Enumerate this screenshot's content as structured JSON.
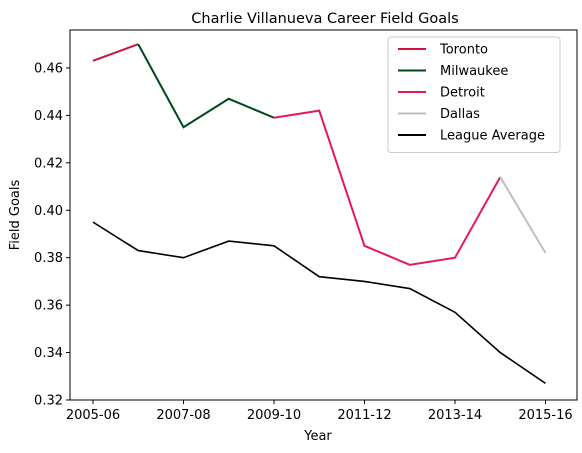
{
  "chart_data": {
    "type": "line",
    "title": "Charlie Villanueva Career Field Goals",
    "xlabel": "Year",
    "ylabel": "Field Goals",
    "x": [
      "2005-06",
      "2006-07",
      "2007-08",
      "2008-09",
      "2009-10",
      "2010-11",
      "2011-12",
      "2012-13",
      "2013-14",
      "2014-15",
      "2015-16"
    ],
    "x_tick_labels": [
      "2005-06",
      "2007-08",
      "2009-10",
      "2011-12",
      "2013-14",
      "2015-16"
    ],
    "ylim": [
      0.32,
      0.476
    ],
    "y_ticks": [
      0.32,
      0.34,
      0.36,
      0.38,
      0.4,
      0.42,
      0.44,
      0.46
    ],
    "y_tick_labels": [
      "0.32",
      "0.34",
      "0.36",
      "0.38",
      "0.40",
      "0.42",
      "0.44",
      "0.46"
    ],
    "grid": false,
    "legend_position": "top-right",
    "series": [
      {
        "name": "Toronto",
        "color": "#ce1141",
        "x": [
          "2005-06",
          "2006-07"
        ],
        "values": [
          0.463,
          0.47
        ]
      },
      {
        "name": "Milwaukee",
        "color": "#00471b",
        "x": [
          "2006-07",
          "2007-08",
          "2008-09",
          "2009-10"
        ],
        "values": [
          0.47,
          0.435,
          0.447,
          0.439
        ]
      },
      {
        "name": "Detroit",
        "color": "#e31b54",
        "x": [
          "2009-10",
          "2010-11",
          "2011-12",
          "2012-13",
          "2013-14",
          "2014-15"
        ],
        "values": [
          0.439,
          0.442,
          0.385,
          0.377,
          0.38,
          0.414
        ]
      },
      {
        "name": "Dallas",
        "color": "#bfbfbf",
        "x": [
          "2014-15",
          "2015-16"
        ],
        "values": [
          0.414,
          0.382
        ]
      },
      {
        "name": "League Average",
        "color": "#000000",
        "x": [
          "2005-06",
          "2006-07",
          "2007-08",
          "2008-09",
          "2009-10",
          "2010-11",
          "2011-12",
          "2012-13",
          "2013-14",
          "2014-15",
          "2015-16"
        ],
        "values": [
          0.395,
          0.383,
          0.38,
          0.387,
          0.385,
          0.372,
          0.37,
          0.367,
          0.357,
          0.34,
          0.327
        ]
      }
    ]
  }
}
